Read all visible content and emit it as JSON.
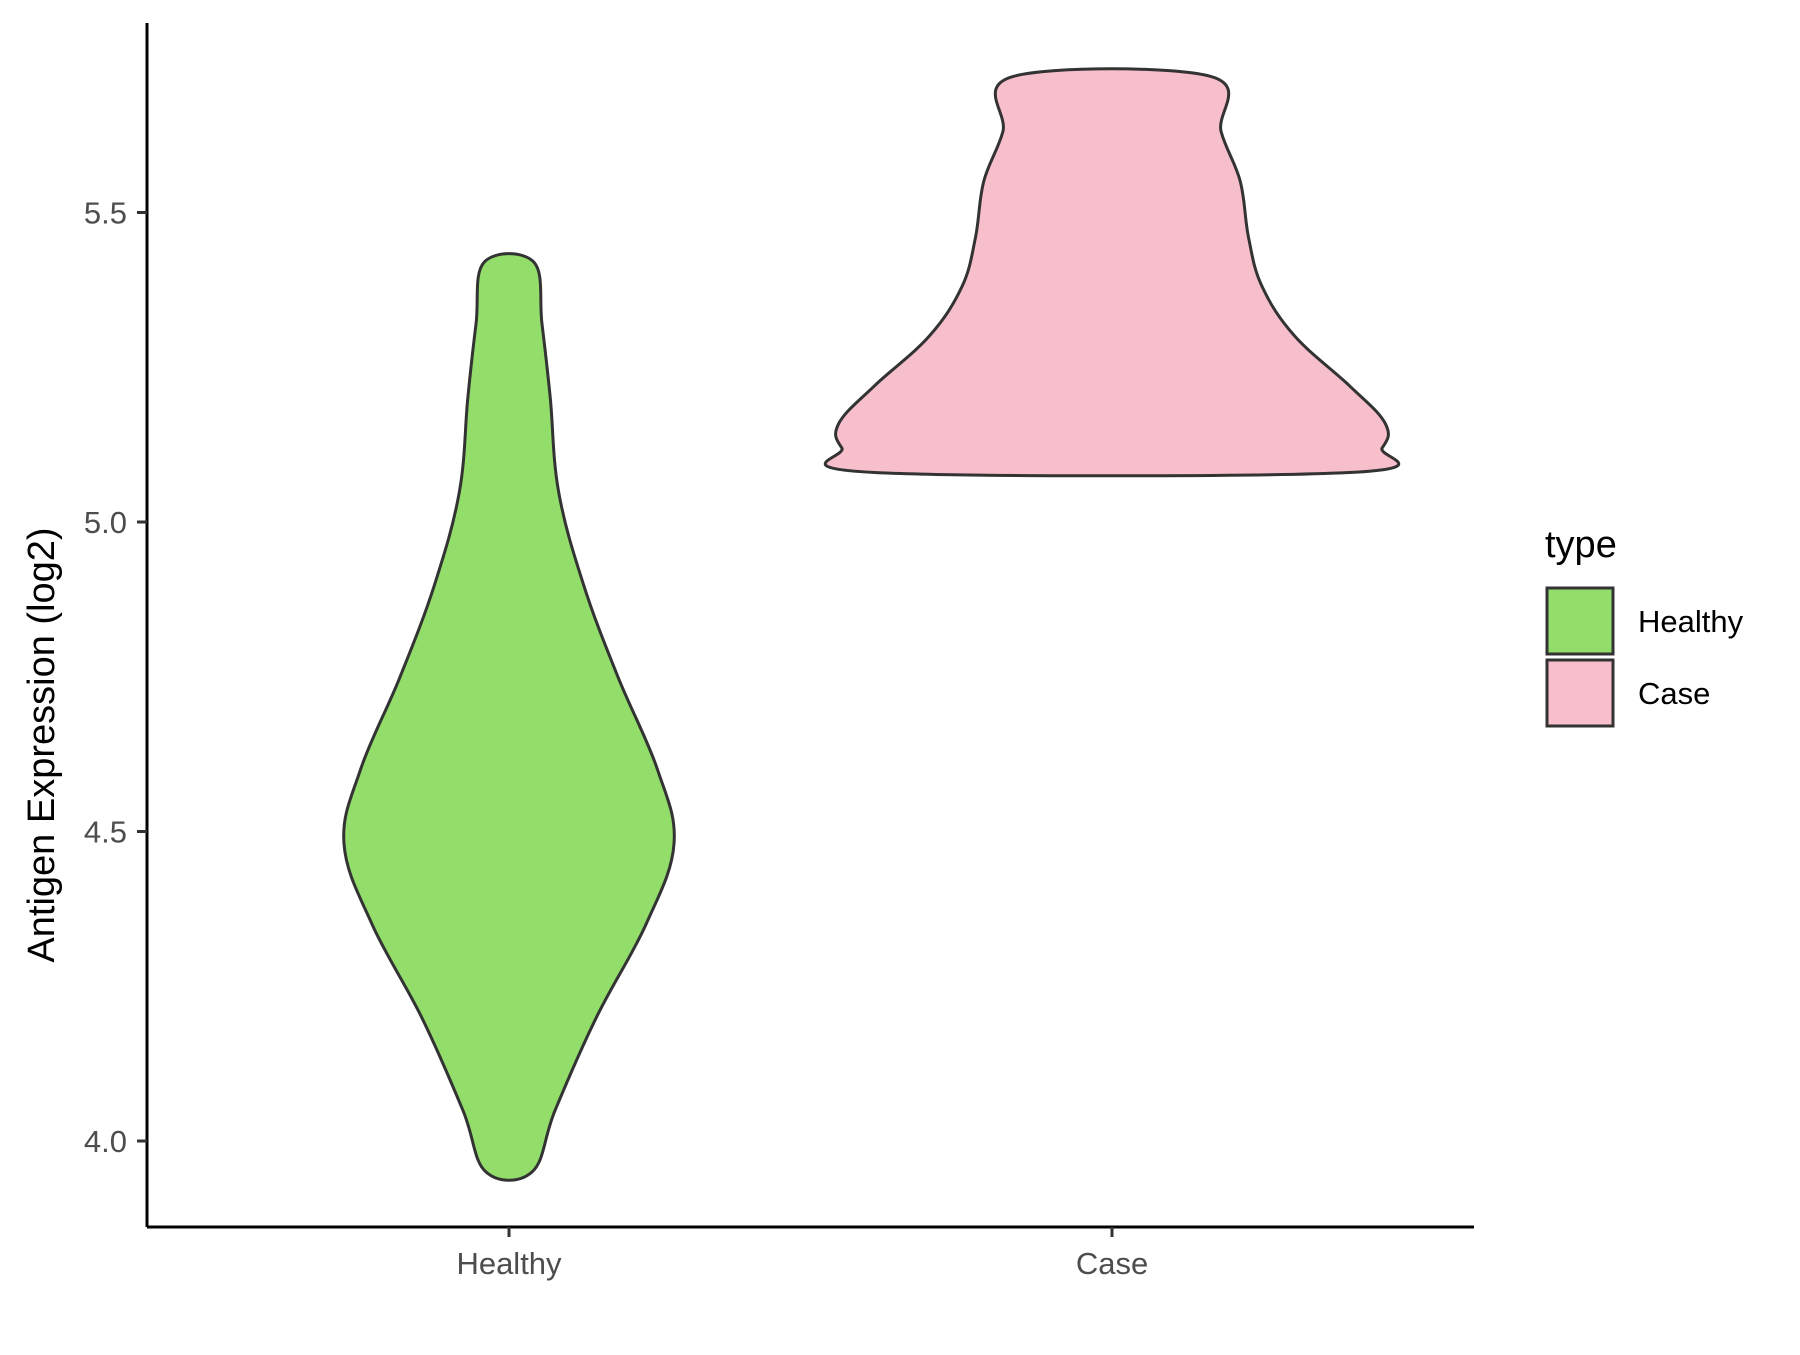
{
  "chart_data": {
    "type": "violin",
    "title": "",
    "xlabel": "",
    "ylabel": "Antigen Expression (log2)",
    "ylim": [
      3.86,
      5.81
    ],
    "yticks": [
      4.0,
      4.5,
      5.0,
      5.5
    ],
    "ytick_labels": [
      "4.0",
      "4.5",
      "5.0",
      "5.5"
    ],
    "categories": [
      "Healthy",
      "Case"
    ],
    "grid": false,
    "legend": {
      "title": "type",
      "position": "right",
      "entries": [
        {
          "label": "Healthy",
          "color": "#93dd6b"
        },
        {
          "label": "Case",
          "color": "#f7bfcb"
        }
      ]
    },
    "series": [
      {
        "name": "Healthy",
        "color": "#93dd6b",
        "min": 3.95,
        "max": 5.42,
        "density_profile": [
          {
            "y": 3.95,
            "w": 0.14
          },
          {
            "y": 4.05,
            "w": 0.28
          },
          {
            "y": 4.2,
            "w": 0.53
          },
          {
            "y": 4.35,
            "w": 0.83
          },
          {
            "y": 4.48,
            "w": 1.0
          },
          {
            "y": 4.6,
            "w": 0.9
          },
          {
            "y": 4.75,
            "w": 0.66
          },
          {
            "y": 4.9,
            "w": 0.45
          },
          {
            "y": 5.05,
            "w": 0.3
          },
          {
            "y": 5.2,
            "w": 0.25
          },
          {
            "y": 5.32,
            "w": 0.2
          },
          {
            "y": 5.42,
            "w": 0.15
          }
        ]
      },
      {
        "name": "Case",
        "color": "#f7bfcb",
        "min": 5.08,
        "max": 5.72,
        "density_profile": [
          {
            "y": 5.08,
            "w": 0.87
          },
          {
            "y": 5.12,
            "w": 0.99
          },
          {
            "y": 5.16,
            "w": 1.0
          },
          {
            "y": 5.22,
            "w": 0.87
          },
          {
            "y": 5.3,
            "w": 0.67
          },
          {
            "y": 5.38,
            "w": 0.55
          },
          {
            "y": 5.46,
            "w": 0.5
          },
          {
            "y": 5.55,
            "w": 0.47
          },
          {
            "y": 5.63,
            "w": 0.4
          },
          {
            "y": 5.72,
            "w": 0.36
          }
        ]
      }
    ]
  }
}
